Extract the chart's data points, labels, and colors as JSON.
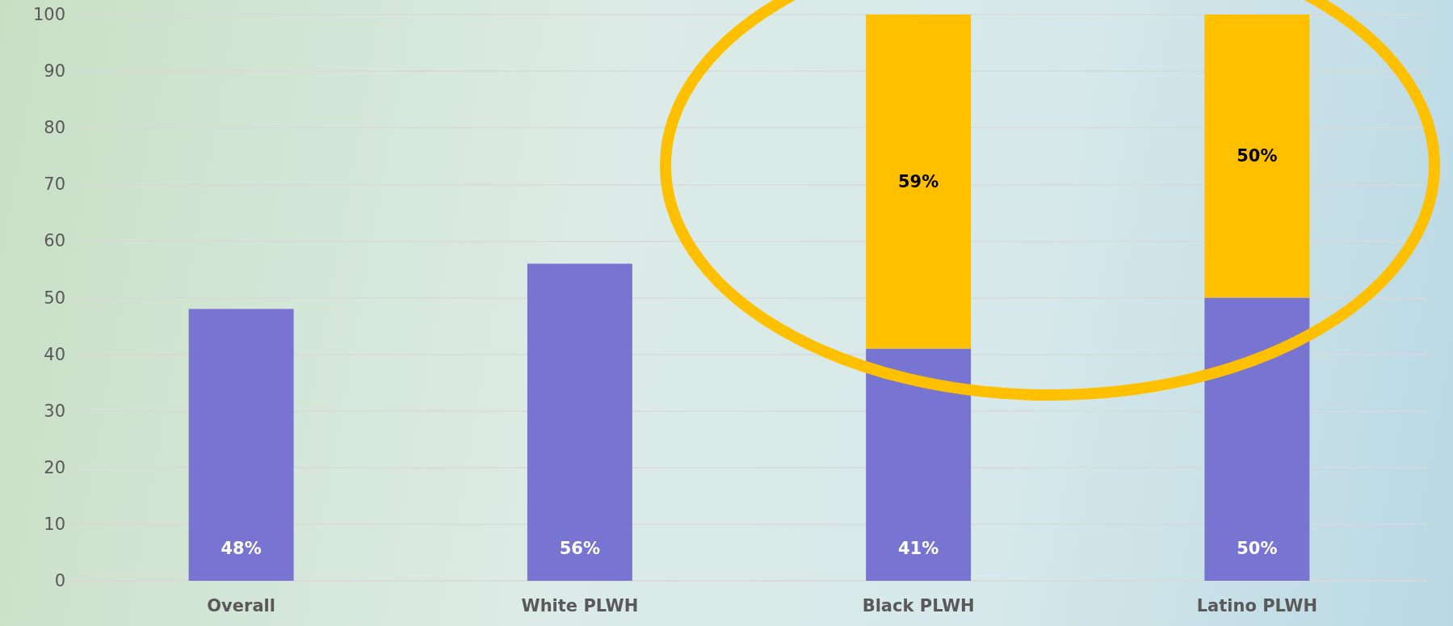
{
  "chart_data": {
    "type": "bar",
    "stacked": true,
    "categories": [
      "Overall",
      "White PLWH",
      "Black PLWH",
      "Latino PLWH"
    ],
    "series": [
      {
        "color": "#7775d1",
        "values": [
          48,
          56,
          41,
          50
        ],
        "value_labels": [
          "48%",
          "56%",
          "41%",
          "50%"
        ]
      },
      {
        "color": "#ffc000",
        "values": [
          null,
          null,
          59,
          50
        ],
        "value_labels": [
          null,
          null,
          "59%",
          "50%"
        ]
      }
    ],
    "ylim": [
      0,
      100
    ],
    "yticks": [
      0,
      10,
      20,
      30,
      40,
      50,
      60,
      70,
      80,
      90,
      100
    ],
    "grid": "y"
  }
}
